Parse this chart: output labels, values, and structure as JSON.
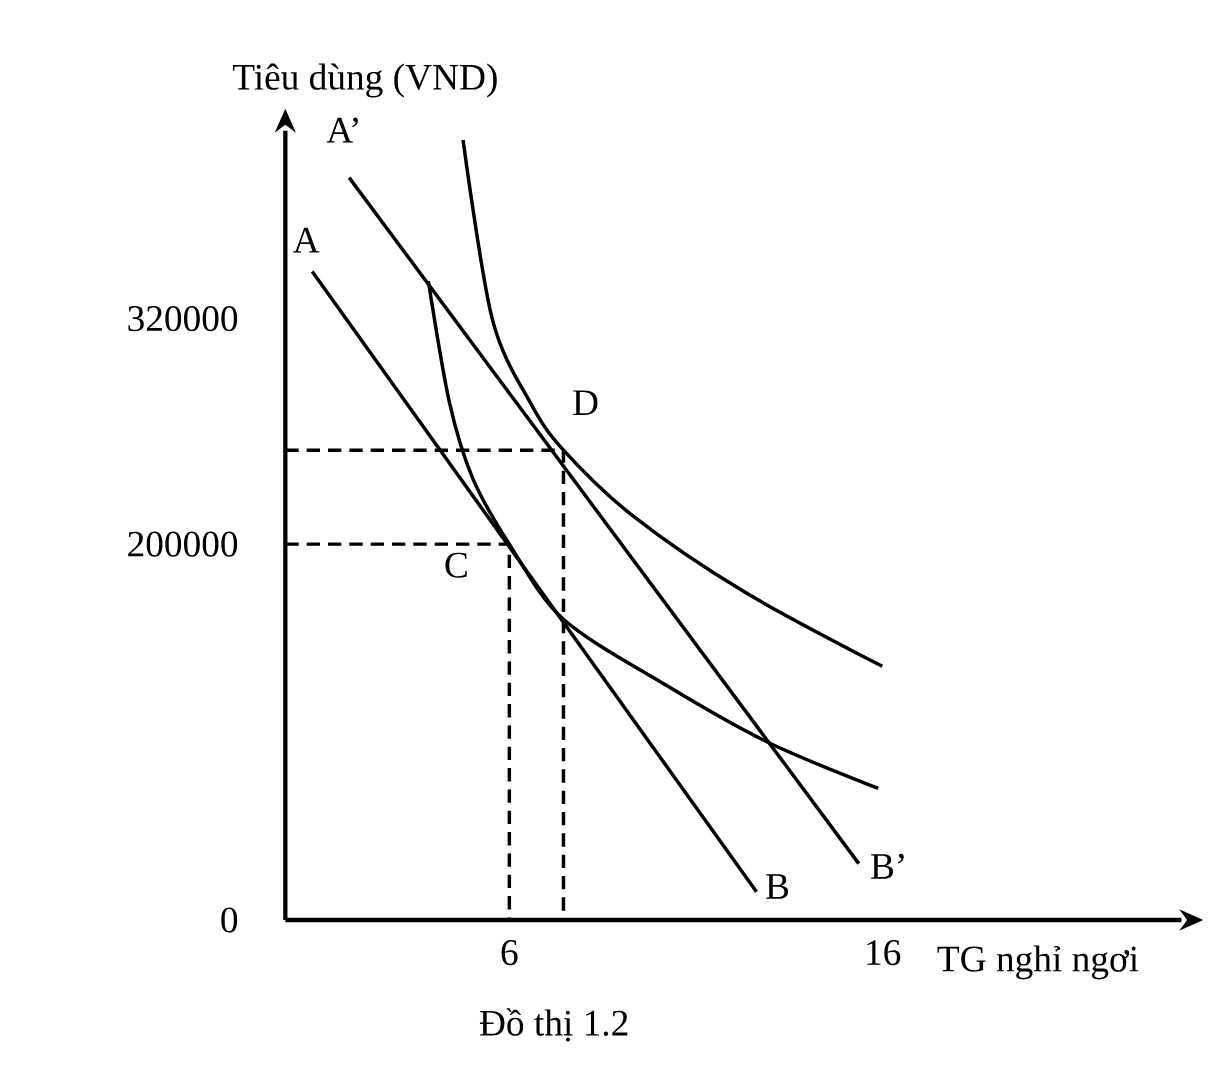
{
  "chart_data": {
    "type": "line",
    "xlabel": "TG nghỉ ngơi",
    "ylabel": "Tiêu dùng (VND)",
    "xlim": [
      0,
      24
    ],
    "ylim": [
      0,
      420000
    ],
    "xticks": [
      6,
      16
    ],
    "yticks": [
      0,
      200000,
      320000
    ],
    "grid": false,
    "marker": "none",
    "line_style": "solid",
    "series": [
      {
        "color": "#000000",
        "x": [
          0.72,
          12.62
        ],
        "values": [
          345000,
          15000
        ]
      },
      {
        "color": "#000000",
        "x": [
          1.71,
          15.36
        ],
        "values": [
          395000,
          30000
        ]
      },
      {
        "color": "#000000",
        "x": [
          3.83,
          4.4,
          5.02,
          6.0,
          7.45,
          10.19,
          12.88,
          15.88
        ],
        "values": [
          340000,
          275000,
          235000,
          200000,
          160000,
          125000,
          95000,
          70000
        ]
      },
      {
        "color": "#000000",
        "x": [
          4.76,
          5.54,
          6.57,
          7.45,
          9.31,
          12.26,
          15.99
        ],
        "values": [
          415000,
          320000,
          275000,
          250000,
          215000,
          175000,
          135000
        ]
      },
      {
        "color": "#000000",
        "line_style": "dashed",
        "x": [
          0,
          6,
          6
        ],
        "values": [
          200000,
          200000,
          0
        ]
      },
      {
        "color": "#000000",
        "line_style": "dashed",
        "x": [
          0,
          7.45,
          7.45
        ],
        "values": [
          250000,
          250000,
          0
        ]
      }
    ],
    "annotations": [
      {
        "text": "A",
        "x": 0.72,
        "y": 345000
      },
      {
        "text": "A’",
        "x": 1.71,
        "y": 395000
      },
      {
        "text": "B",
        "x": 12.62,
        "y": 15000
      },
      {
        "text": "B’",
        "x": 15.36,
        "y": 30000
      },
      {
        "text": "C",
        "x": 6.0,
        "y": 200000
      },
      {
        "text": "D",
        "x": 7.45,
        "y": 250000
      },
      "Đồ thị 1.2"
    ]
  }
}
